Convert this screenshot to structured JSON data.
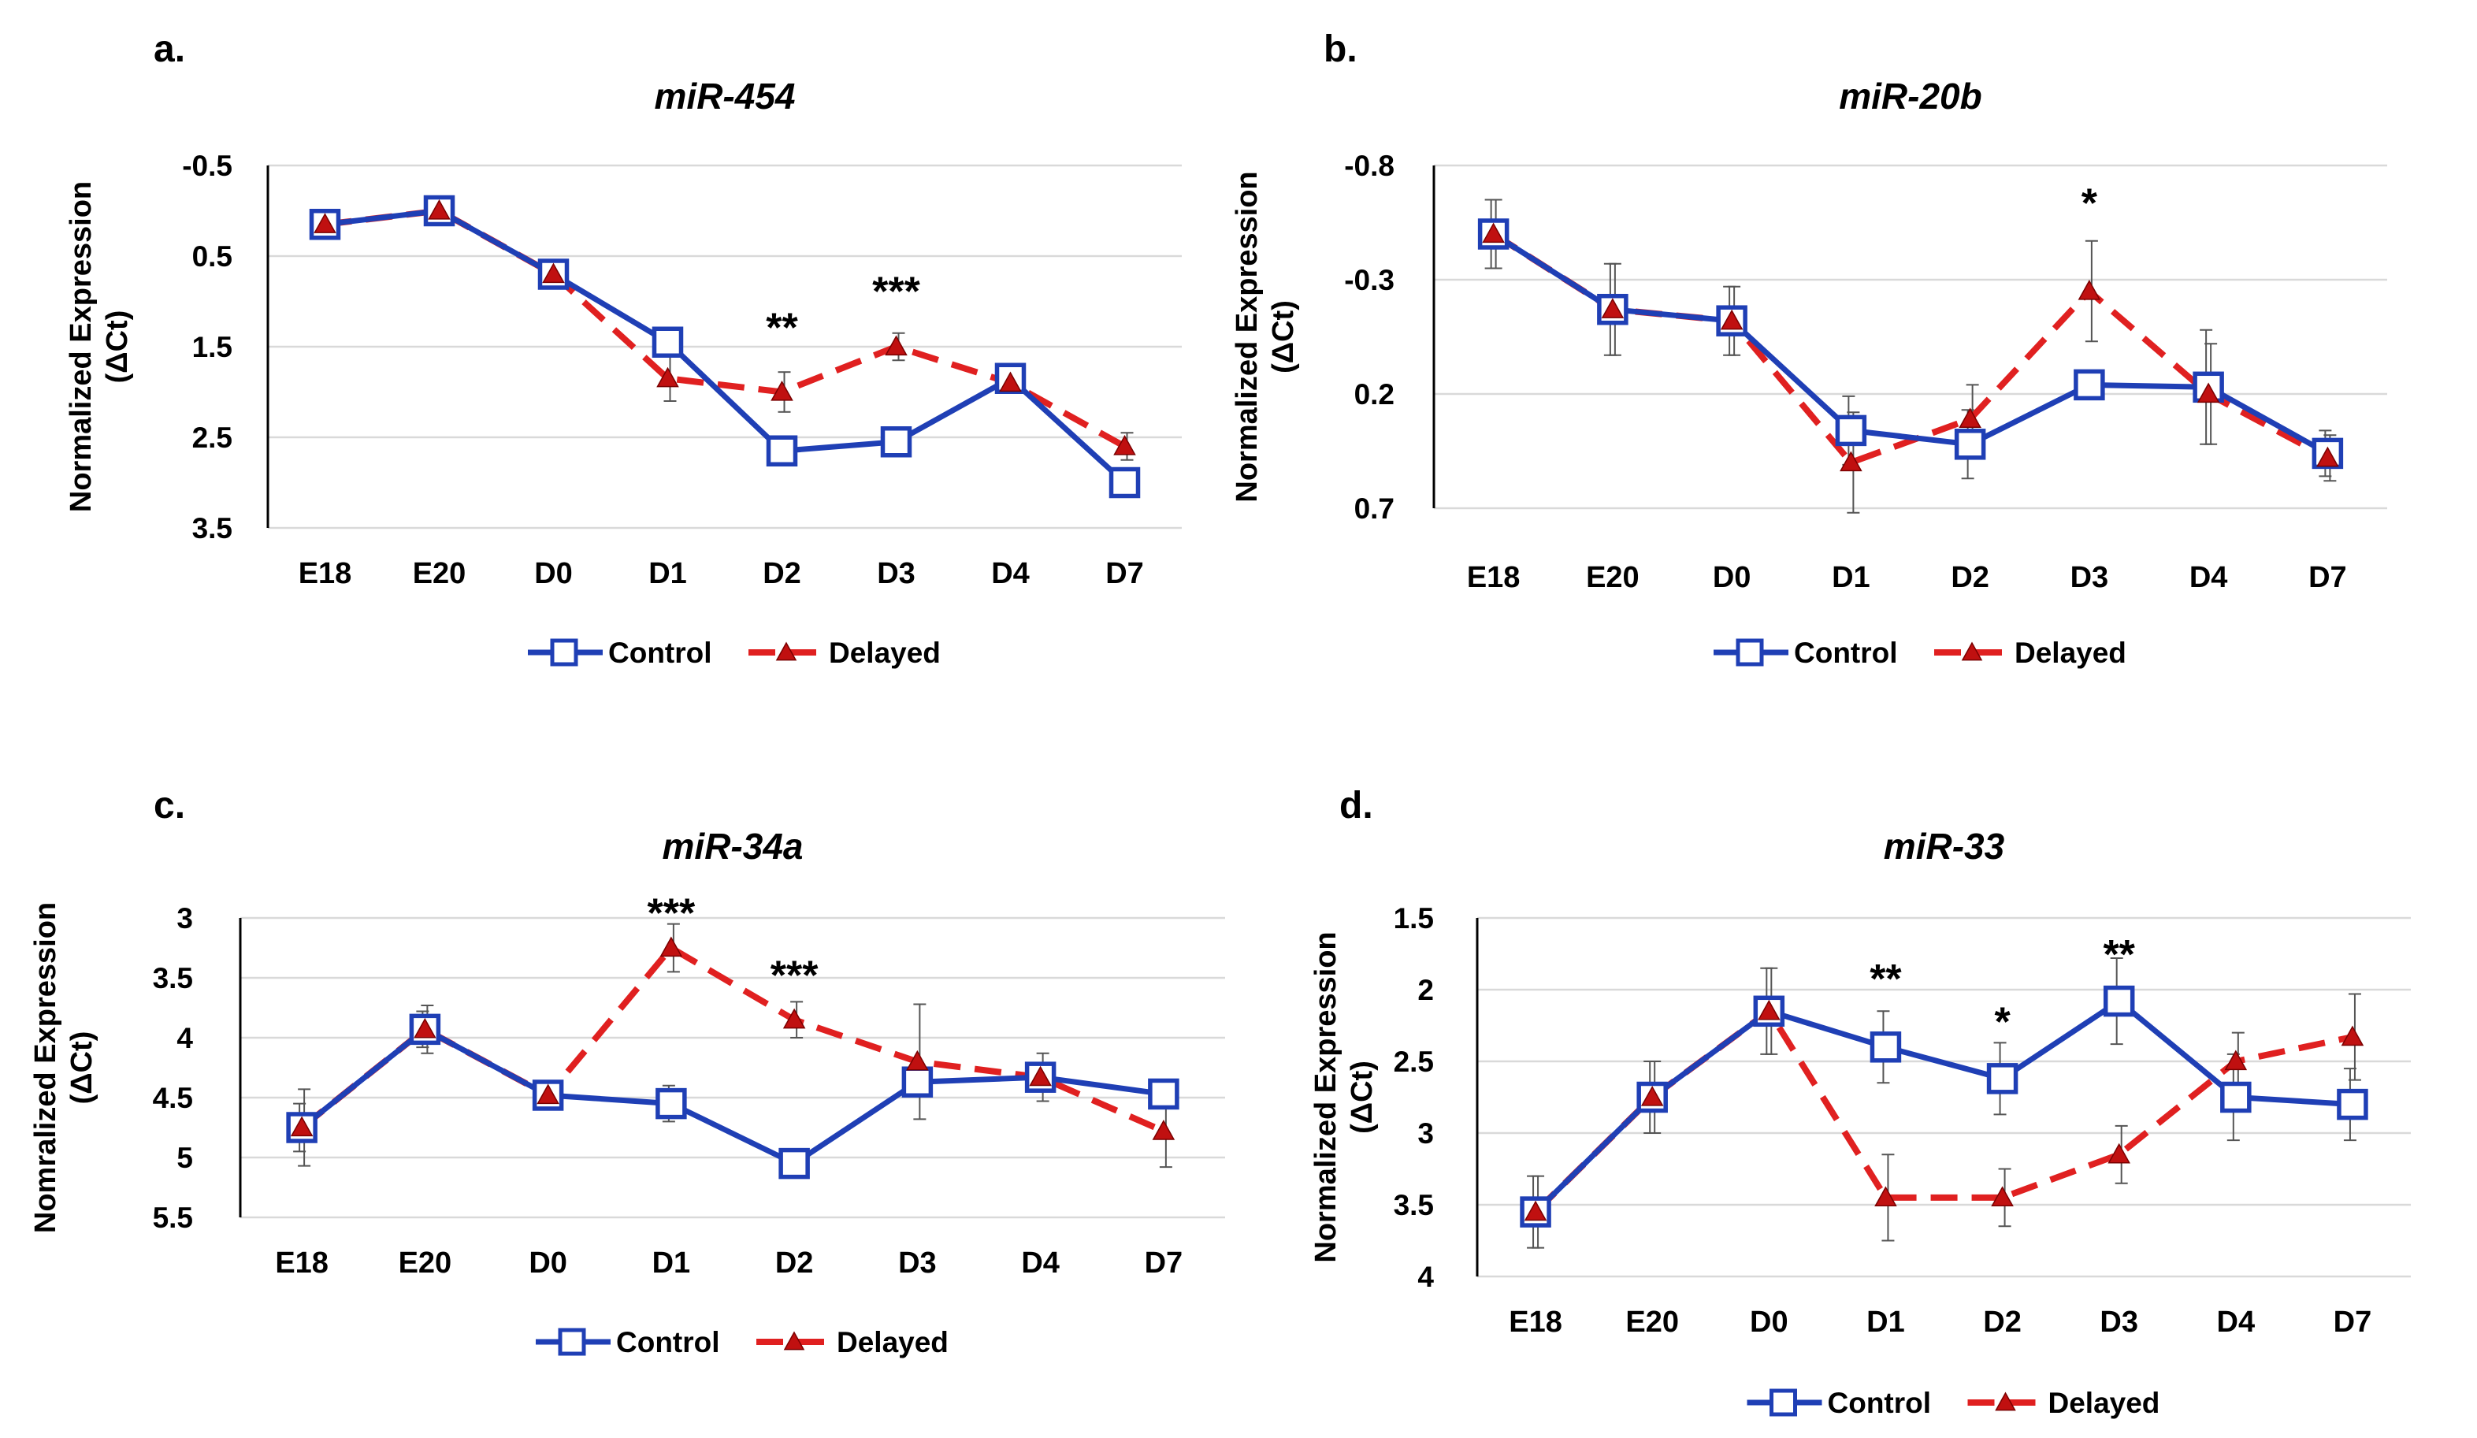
{
  "colors": {
    "control": "#1f3fb5",
    "delayed": "#e02020",
    "marker_fill": "#c01010",
    "grid": "#d9d9d9",
    "axis": "#000000",
    "text": "#000000"
  },
  "legend": {
    "control": "Control",
    "delayed": "Delayed"
  },
  "chart_data": [
    {
      "type": "line",
      "panel_label": "a.",
      "title": "miR-454",
      "ylabel_line1": "Normalized Expression",
      "ylabel_line2": "(ΔCt)",
      "categories": [
        "E18",
        "E20",
        "D0",
        "D1",
        "D2",
        "D3",
        "D4",
        "D7"
      ],
      "ylim": [
        -0.5,
        3.5
      ],
      "y_inverted": true,
      "yticks": [
        -0.5,
        0.5,
        1.5,
        2.5,
        3.5
      ],
      "ytick_labels": [
        "-0.5",
        "0.5",
        "1.5",
        "2.5",
        "3.5"
      ],
      "grid": true,
      "legend_position": "bottom",
      "series": [
        {
          "name": "Control",
          "values": [
            0.15,
            0.0,
            0.7,
            1.45,
            2.65,
            2.55,
            1.85,
            3.0
          ],
          "errors": [
            0.08,
            0.08,
            0.1,
            0.08,
            0.15,
            0.1,
            0.12,
            0.1
          ]
        },
        {
          "name": "Delayed",
          "values": [
            0.15,
            0.0,
            0.7,
            1.85,
            2.0,
            1.5,
            1.9,
            2.6
          ],
          "errors": [
            0.08,
            0.08,
            0.1,
            0.25,
            0.22,
            0.15,
            0.1,
            0.15
          ]
        }
      ],
      "annotations": [
        {
          "category": "D2",
          "text": "**",
          "y": 1.25
        },
        {
          "category": "D3",
          "text": "***",
          "y": 0.85
        }
      ]
    },
    {
      "type": "line",
      "panel_label": "b.",
      "title": "miR-20b",
      "ylabel_line1": "Normalized Expression",
      "ylabel_line2": "(ΔCt)",
      "categories": [
        "E18",
        "E20",
        "D0",
        "D1",
        "D2",
        "D3",
        "D4",
        "D7"
      ],
      "ylim": [
        -0.8,
        0.7
      ],
      "y_inverted": true,
      "yticks": [
        -0.8,
        -0.3,
        0.2,
        0.7
      ],
      "ytick_labels": [
        "-0.8",
        "-0.3",
        "0.2",
        "0.7"
      ],
      "grid": true,
      "legend_position": "bottom",
      "series": [
        {
          "name": "Control",
          "values": [
            -0.5,
            -0.17,
            -0.12,
            0.36,
            0.42,
            0.16,
            0.17,
            0.46
          ],
          "errors": [
            0.15,
            0.2,
            0.15,
            0.15,
            0.15,
            0.05,
            0.25,
            0.1
          ]
        },
        {
          "name": "Delayed",
          "values": [
            -0.5,
            -0.17,
            -0.12,
            0.5,
            0.31,
            -0.25,
            0.2,
            0.48
          ],
          "errors": [
            0.15,
            0.2,
            0.15,
            0.22,
            0.15,
            0.22,
            0.22,
            0.1
          ]
        }
      ],
      "annotations": [
        {
          "category": "D3",
          "text": "*",
          "y": -0.65
        }
      ]
    },
    {
      "type": "line",
      "panel_label": "c.",
      "title": "miR-34a",
      "ylabel_line1": "Nomralized Expression",
      "ylabel_line2": "(ΔCt)",
      "categories": [
        "E18",
        "E20",
        "D0",
        "D1",
        "D2",
        "D3",
        "D4",
        "D7"
      ],
      "ylim": [
        3.0,
        5.5
      ],
      "y_inverted": true,
      "yticks": [
        3,
        3.5,
        4,
        4.5,
        5,
        5.5
      ],
      "ytick_labels": [
        "3",
        "3.5",
        "4",
        "4.5",
        "5",
        "5.5"
      ],
      "grid": true,
      "legend_position": "bottom",
      "series": [
        {
          "name": "Control",
          "values": [
            4.75,
            3.93,
            4.48,
            4.55,
            5.05,
            4.37,
            4.33,
            4.47
          ],
          "errors": [
            0.2,
            0.15,
            0.08,
            0.15,
            0.08,
            0.1,
            0.12,
            0.12
          ]
        },
        {
          "name": "Delayed",
          "values": [
            4.75,
            3.93,
            4.48,
            3.25,
            3.85,
            4.2,
            4.33,
            4.78
          ],
          "errors": [
            0.32,
            0.2,
            0.08,
            0.2,
            0.15,
            0.48,
            0.2,
            0.3
          ]
        }
      ],
      "annotations": [
        {
          "category": "D1",
          "text": "***",
          "y": 2.93
        },
        {
          "category": "D2",
          "text": "***",
          "y": 3.45
        }
      ]
    },
    {
      "type": "line",
      "panel_label": "d.",
      "title": "miR-33",
      "ylabel_line1": "Normalized Expression",
      "ylabel_line2": "(ΔCt)",
      "categories": [
        "E18",
        "E20",
        "D0",
        "D1",
        "D2",
        "D3",
        "D4",
        "D7"
      ],
      "ylim": [
        1.5,
        4.0
      ],
      "y_inverted": true,
      "yticks": [
        1.5,
        2,
        2.5,
        3,
        3.5,
        4
      ],
      "ytick_labels": [
        "1.5",
        "2",
        "2.5",
        "3",
        "3.5",
        "4"
      ],
      "grid": true,
      "legend_position": "bottom",
      "series": [
        {
          "name": "Control",
          "values": [
            3.55,
            2.75,
            2.15,
            2.4,
            2.62,
            2.08,
            2.75,
            2.8
          ],
          "errors": [
            0.25,
            0.25,
            0.3,
            0.25,
            0.25,
            0.3,
            0.3,
            0.25
          ]
        },
        {
          "name": "Delayed",
          "values": [
            3.55,
            2.75,
            2.15,
            3.45,
            3.45,
            3.15,
            2.5,
            2.33
          ],
          "errors": [
            0.25,
            0.25,
            0.3,
            0.3,
            0.2,
            0.2,
            0.2,
            0.3
          ]
        }
      ],
      "annotations": [
        {
          "category": "D1",
          "text": "**",
          "y": 1.9
        },
        {
          "category": "D2",
          "text": "*",
          "y": 2.2
        },
        {
          "category": "D3",
          "text": "**",
          "y": 1.73
        }
      ]
    }
  ]
}
